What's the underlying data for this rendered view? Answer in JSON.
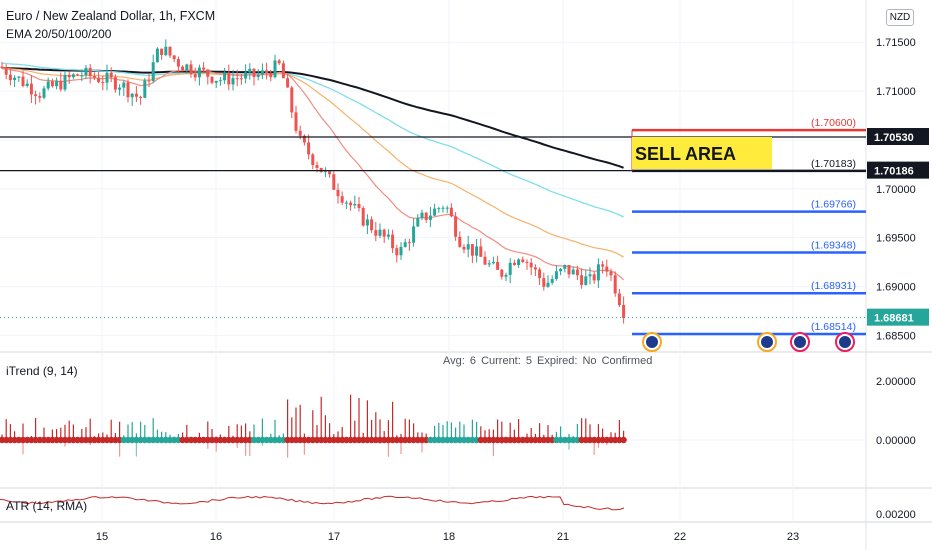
{
  "header": {
    "title": "Euro / New Zealand Dollar, 1h, FXCM",
    "ema_label": "EMA 20/50/100/200",
    "currency": "NZD"
  },
  "annotation": {
    "sell_area": "SELL AREA"
  },
  "panes": {
    "itrend_label": "iTrend (9, 14)",
    "atr_label": "ATR (14, RMA)"
  },
  "info": {
    "avg": "Avg: 6",
    "current": "Current: 5",
    "expired": "Expired: No",
    "confirmed": "Confirmed"
  },
  "colors": {
    "bull": "#26a69a",
    "bear": "#ef5350",
    "ema20": "#f28b82",
    "ema50": "#f6b26b",
    "ema100": "#80deea",
    "ema200": "#131722",
    "level_blue": "#2962ff",
    "level_red": "#e53935",
    "itrend_red": "#c62828",
    "itrend_teal": "#26a69a",
    "atr": "#c62828"
  },
  "chart_data": {
    "type": "candlestick",
    "x_ticks": [
      "15",
      "16",
      "17",
      "18",
      "21",
      "22",
      "23"
    ],
    "y_ticks": [
      "1.71500",
      "1.71000",
      "1.70500",
      "1.70000",
      "1.69500",
      "1.69000",
      "1.68500"
    ],
    "y_range": [
      1.6835,
      1.7183
    ],
    "current_price": "1.68681",
    "horizontal_lines": [
      {
        "label": "1.70530",
        "value": 1.7053,
        "color": "black"
      },
      {
        "label": "1.70186",
        "value": 1.70186,
        "color": "black"
      }
    ],
    "levels": [
      {
        "label": "(1.70600)",
        "value": 1.706,
        "color": "red"
      },
      {
        "label": "(1.70183)",
        "value": 1.70183,
        "color": "black"
      },
      {
        "label": "(1.69766)",
        "value": 1.69766,
        "color": "blue"
      },
      {
        "label": "(1.69348)",
        "value": 1.69348,
        "color": "blue"
      },
      {
        "label": "(1.68931)",
        "value": 1.68931,
        "color": "blue"
      },
      {
        "label": "(1.68514)",
        "value": 1.68514,
        "color": "blue"
      }
    ],
    "itrend_ticks": [
      "2.00000",
      "0.00000"
    ],
    "atr_ticks": [
      "0.00200"
    ]
  }
}
